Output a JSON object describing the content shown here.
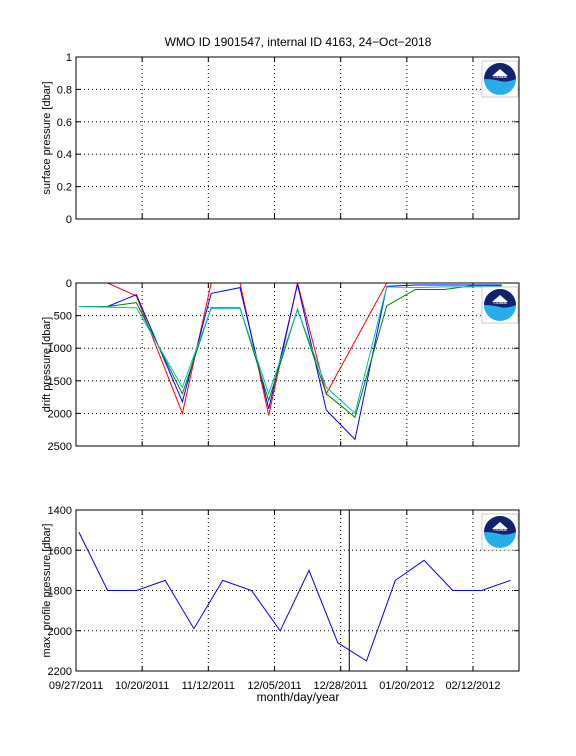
{
  "title": "WMO ID 1901547, internal ID 4163, 24−Oct−2018",
  "logo": {
    "text": "noaa",
    "colors": {
      "blue": "#1a4a9c",
      "cyan": "#27aee8",
      "navy": "#14226e"
    }
  },
  "chart_data": [
    {
      "type": "line",
      "ylabel": "surface pressure [dbar]",
      "ylim": [
        0,
        1
      ],
      "y_reversed": false,
      "yticks": [
        0,
        0.2,
        0.4,
        0.6,
        0.8,
        1
      ],
      "ytick_labels": [
        "0",
        "0.2",
        "0.4",
        "0.6",
        "0.8",
        "1"
      ],
      "grid": true,
      "series": []
    },
    {
      "type": "line",
      "ylabel": "drift pressure [dbar]",
      "ylim": [
        0,
        2500
      ],
      "y_reversed": true,
      "yticks": [
        0,
        500,
        1000,
        1500,
        2000,
        2500
      ],
      "ytick_labels": [
        "0",
        "500",
        "1000",
        "1500",
        "2000",
        "2500"
      ],
      "grid": true,
      "series": [
        {
          "color": "#ff0000",
          "x": [
            "2011-09-28",
            "2011-10-08",
            "2011-10-18",
            "2011-11-03",
            "2011-11-13",
            "2011-11-23",
            "2011-12-03",
            "2011-12-13",
            "2011-12-23",
            "2012-01-13",
            "2012-01-23",
            "2012-02-02",
            "2012-02-12",
            "2012-02-22"
          ],
          "y": [
            0,
            0,
            200,
            2000,
            0,
            0,
            2030,
            0,
            1700,
            0,
            0,
            0,
            0,
            0
          ]
        },
        {
          "color": "#0000ff",
          "x": [
            "2011-09-28",
            "2011-10-08",
            "2011-10-18",
            "2011-11-03",
            "2011-11-13",
            "2011-11-23",
            "2011-12-03",
            "2011-12-13",
            "2011-12-23",
            "2012-01-02",
            "2012-01-13",
            "2012-01-23",
            "2012-02-02",
            "2012-02-12",
            "2012-02-22"
          ],
          "y": [
            360,
            360,
            180,
            1820,
            160,
            70,
            1930,
            20,
            1950,
            2400,
            50,
            30,
            30,
            30,
            30
          ]
        },
        {
          "color": "#008000",
          "x": [
            "2011-09-28",
            "2011-10-08",
            "2011-10-18",
            "2011-11-03",
            "2011-11-13",
            "2011-11-23",
            "2011-12-03",
            "2011-12-13",
            "2011-12-23",
            "2012-01-02",
            "2012-01-13",
            "2012-01-23",
            "2012-02-02",
            "2012-02-12",
            "2012-02-22"
          ],
          "y": [
            360,
            360,
            300,
            1700,
            380,
            380,
            1800,
            400,
            1700,
            2060,
            350,
            100,
            100,
            40,
            40
          ]
        },
        {
          "color": "#00bfbf",
          "x": [
            "2011-09-28",
            "2011-10-08",
            "2011-10-18",
            "2011-11-03",
            "2011-11-13",
            "2011-11-23",
            "2011-12-03",
            "2011-12-13",
            "2011-12-23",
            "2012-01-02",
            "2012-01-13",
            "2012-01-23",
            "2012-02-02",
            "2012-02-12",
            "2012-02-22"
          ],
          "y": [
            360,
            370,
            380,
            1600,
            390,
            390,
            1700,
            410,
            1600,
            2000,
            60,
            70,
            60,
            60,
            60
          ]
        }
      ]
    },
    {
      "type": "line",
      "ylabel": "max. profile pressure [dbar]",
      "xlabel": "month/day/year",
      "ylim": [
        1400,
        2200
      ],
      "y_reversed": true,
      "yticks": [
        1400,
        1600,
        1800,
        2000,
        2200
      ],
      "ytick_labels": [
        "1400",
        "1600",
        "1800",
        "2000",
        "2200"
      ],
      "grid": true,
      "vline_x": "2011-12-31",
      "series": [
        {
          "color": "#0000ff",
          "x": [
            "2011-09-28",
            "2011-10-08",
            "2011-10-18",
            "2011-10-28",
            "2011-11-07",
            "2011-11-17",
            "2011-11-27",
            "2011-12-07",
            "2011-12-17",
            "2011-12-27",
            "2012-01-06",
            "2012-01-16",
            "2012-01-26",
            "2012-02-05",
            "2012-02-15",
            "2012-02-25"
          ],
          "y": [
            1510,
            1800,
            1800,
            1750,
            1990,
            1750,
            1800,
            2000,
            1700,
            2060,
            2150,
            1750,
            1650,
            1800,
            1800,
            1750
          ]
        }
      ]
    }
  ],
  "x_axis": {
    "xlim": [
      "2011-09-27",
      "2012-02-28"
    ],
    "ticks": [
      "2011-09-27",
      "2011-10-20",
      "2011-11-12",
      "2011-12-05",
      "2011-12-28",
      "2012-01-20",
      "2012-02-12"
    ],
    "tick_labels": [
      "09/27/2011",
      "10/20/2011",
      "11/12/2011",
      "12/05/2011",
      "12/28/2011",
      "01/20/2012",
      "02/12/2012"
    ],
    "label": "month/day/year"
  }
}
